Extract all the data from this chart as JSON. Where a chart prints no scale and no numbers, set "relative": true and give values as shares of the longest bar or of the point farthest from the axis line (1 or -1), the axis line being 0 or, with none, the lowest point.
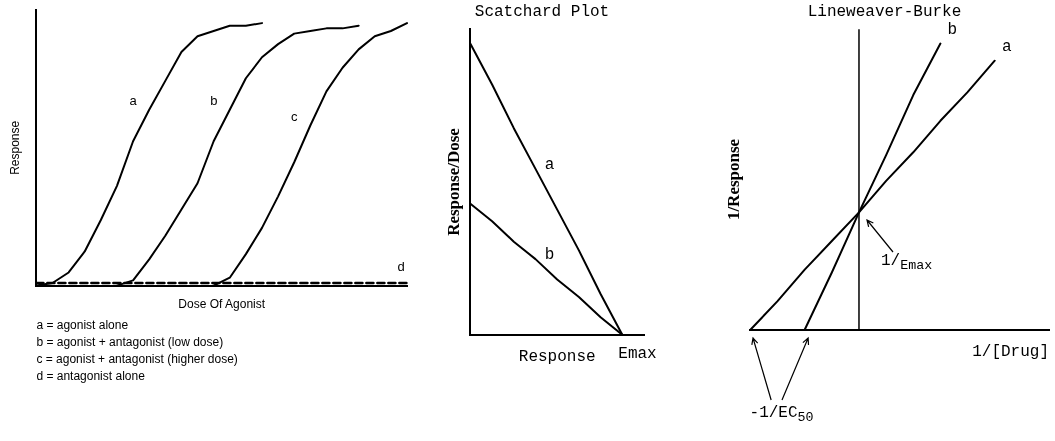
{
  "chart_data": [
    {
      "type": "line",
      "relative": true,
      "xlabel": "Dose Of Agonist",
      "ylabel": "Response",
      "tick_labels": false,
      "categories": [
        null,
        null,
        null,
        null,
        null,
        null,
        null,
        null,
        null,
        null,
        null,
        null,
        null,
        null,
        null,
        null,
        null,
        null,
        null,
        null,
        null,
        null,
        null,
        null
      ],
      "series": [
        {
          "name": "a",
          "color": "#000000",
          "values": [
            0,
            0.01,
            0.05,
            0.13,
            0.25,
            0.38,
            0.55,
            0.67,
            0.78,
            0.89,
            0.95,
            0.97,
            0.99,
            0.99,
            1.0,
            null,
            null,
            null,
            null,
            null,
            null,
            null,
            null,
            null
          ]
        },
        {
          "name": "b",
          "color": "#000000",
          "values": [
            null,
            null,
            null,
            null,
            null,
            0,
            0.02,
            0.1,
            0.19,
            0.29,
            0.39,
            0.55,
            0.67,
            0.79,
            0.87,
            0.92,
            0.96,
            0.97,
            0.98,
            0.98,
            0.99,
            null,
            null,
            null
          ]
        },
        {
          "name": "c",
          "color": "#000000",
          "values": [
            null,
            null,
            null,
            null,
            null,
            null,
            null,
            null,
            null,
            null,
            null,
            0,
            0.03,
            0.12,
            0.22,
            0.34,
            0.47,
            0.61,
            0.74,
            0.83,
            0.9,
            0.95,
            0.97,
            1.0
          ]
        },
        {
          "name": "d",
          "color": "#000000",
          "line_style": "dashed",
          "values": [
            0.01,
            0.01,
            0.01,
            0.01,
            0.01,
            0.01,
            0.01,
            0.01,
            0.01,
            0.01,
            0.01,
            0.01,
            0.01,
            0.01,
            0.01,
            0.01,
            0.01,
            0.01,
            0.01,
            0.01,
            0.01,
            0.01,
            0.01,
            0.01
          ]
        }
      ],
      "annotations": [
        "a = agonist alone",
        "b = agonist + antagonist (low dose)",
        "c = agonist + antagonist (higher dose)",
        "d = antagonist alone"
      ]
    },
    {
      "type": "line",
      "relative": true,
      "title": "Scatchard Plot",
      "xlabel": "Response",
      "ylabel": "Response/Dose",
      "tick_labels": false,
      "categories": [
        null,
        null,
        null,
        null,
        null,
        null,
        null,
        null,
        null
      ],
      "annotations": [
        "Emax"
      ],
      "series": [
        {
          "name": "a",
          "color": "#000000",
          "values": [
            1,
            0.86,
            0.71,
            0.57,
            0.43,
            0.29,
            0.14,
            0,
            null
          ]
        },
        {
          "name": "b",
          "color": "#000000",
          "values": [
            0.45,
            0.39,
            0.32,
            0.26,
            0.19,
            0.13,
            0.06,
            0,
            null
          ]
        }
      ]
    },
    {
      "type": "line",
      "relative": true,
      "title": "Lineweaver-Burke",
      "xlabel": "1/[Drug]",
      "ylabel": "1/Response",
      "tick_labels": false,
      "categories": [
        null,
        null,
        null,
        null,
        null,
        null,
        null,
        null,
        null,
        null,
        null,
        null
      ],
      "series": [
        {
          "name": "a",
          "color": "#000000",
          "values": [
            0,
            0.1,
            0.21,
            0.31,
            0.41,
            0.52,
            0.62,
            0.73,
            0.83,
            0.94,
            null,
            null
          ]
        },
        {
          "name": "b",
          "color": "#000000",
          "values": [
            null,
            null,
            0,
            0.2,
            0.41,
            0.61,
            0.82,
            1.0,
            null,
            null,
            null,
            null
          ]
        }
      ],
      "annotations": [
        "1/$_{Emax}$",
        "-1/EC$_{50}$"
      ]
    }
  ]
}
